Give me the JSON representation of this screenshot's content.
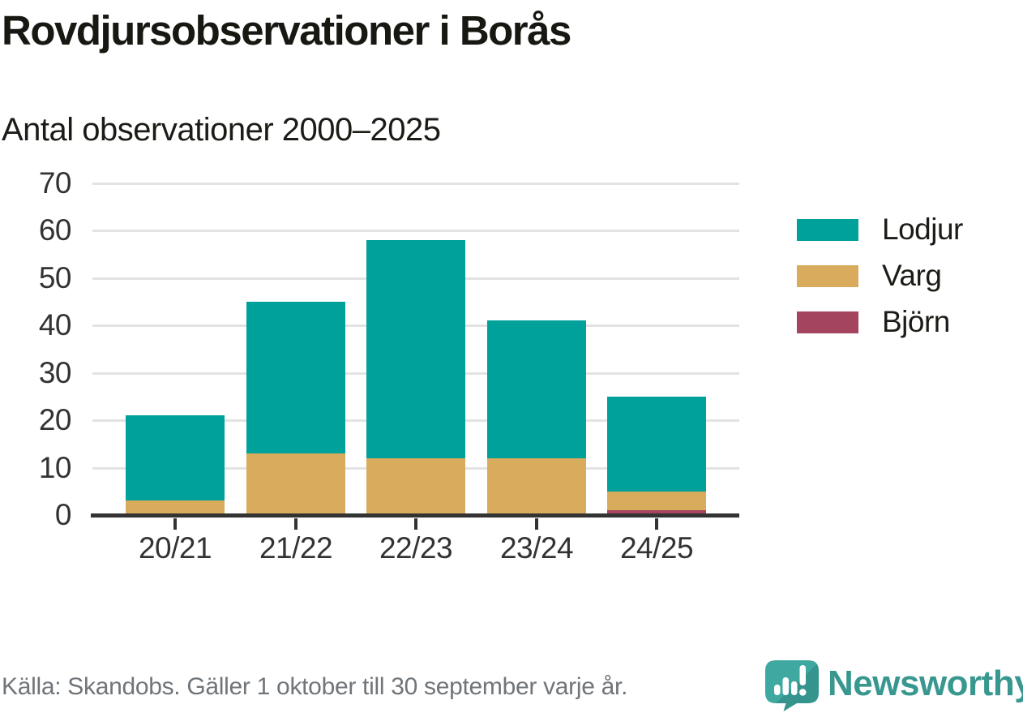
{
  "title": "Rovdjursobservationer i Borås",
  "subtitle": "Antal observationer 2000–2025",
  "source": "Källa: Skandobs. Gäller 1 oktober till 30 september varje år.",
  "branding": {
    "logo_text": "Newsworthy",
    "logo_icon": "newsworthy-speech-bubble-bar-chart-icon"
  },
  "colors": {
    "lodjur": "#00a19a",
    "varg": "#d9ab5c",
    "bjorn": "#a4445f",
    "axis": "#333333",
    "grid": "#e3e3e3",
    "tick_label": "#333333",
    "source_text": "#70757a",
    "brand_teal": "#3fa8a0",
    "brand_teal_dark": "#35958e",
    "brand_text": "#38978f"
  },
  "chart_data": {
    "type": "bar",
    "stacked": true,
    "title": "Rovdjursobservationer i Borås",
    "subtitle": "Antal observationer 2000–2025",
    "categories": [
      "20/21",
      "21/22",
      "22/23",
      "23/24",
      "24/25"
    ],
    "series": [
      {
        "name": "Lodjur",
        "color_key": "lodjur",
        "values": [
          18,
          32,
          46,
          29,
          20
        ]
      },
      {
        "name": "Varg",
        "color_key": "varg",
        "values": [
          3,
          13,
          12,
          12,
          4
        ]
      },
      {
        "name": "Björn",
        "color_key": "bjorn",
        "values": [
          0,
          0,
          0,
          0,
          1
        ]
      }
    ],
    "totals": [
      21,
      45,
      58,
      41,
      25
    ],
    "y_ticks": [
      0,
      10,
      20,
      30,
      40,
      50,
      60,
      70
    ],
    "ylim": [
      0,
      70
    ],
    "xlabel": "",
    "ylabel": "",
    "grid": true,
    "legend_position": "right"
  }
}
